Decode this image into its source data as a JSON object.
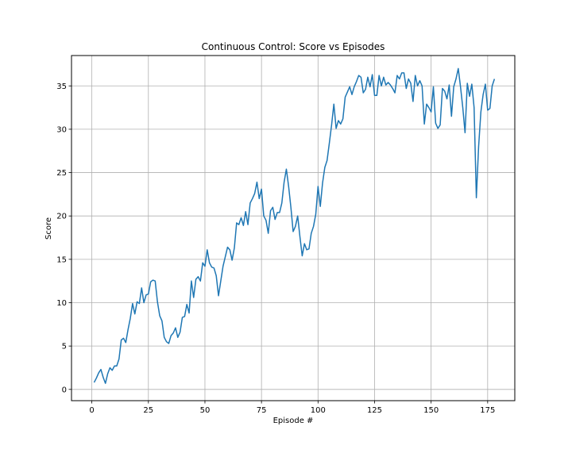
{
  "chart_data": {
    "type": "line",
    "title": "Continuous Control: Score vs Episodes",
    "xlabel": "Episode #",
    "ylabel": "Score",
    "xlim": [
      -9,
      187
    ],
    "ylim": [
      -1.3,
      38.5
    ],
    "xticks": [
      0,
      25,
      50,
      75,
      100,
      125,
      150,
      175
    ],
    "yticks": [
      0,
      5,
      10,
      15,
      20,
      25,
      30,
      35
    ],
    "grid": true,
    "line_color": "#1f77b4",
    "series": [
      {
        "x": [
          1,
          2,
          3,
          4,
          5,
          6,
          7,
          8,
          9,
          10,
          11,
          12,
          13,
          14,
          15,
          16,
          17,
          18,
          19,
          20,
          21,
          22,
          23,
          24,
          25,
          26,
          27,
          28,
          29,
          30,
          31,
          32,
          33,
          34,
          35,
          36,
          37,
          38,
          39,
          40,
          41,
          42,
          43,
          44,
          45,
          46,
          47,
          48,
          49,
          50,
          51,
          52,
          53,
          54,
          55,
          56,
          57,
          58,
          59,
          60,
          61,
          62,
          63,
          64,
          65,
          66,
          67,
          68,
          69,
          70,
          71,
          72,
          73,
          74,
          75,
          76,
          77,
          78,
          79,
          80,
          81,
          82,
          83,
          84,
          85,
          86,
          87,
          88,
          89,
          90,
          91,
          92,
          93,
          94,
          95,
          96,
          97,
          98,
          99,
          100,
          101,
          102,
          103,
          104,
          105,
          106,
          107,
          108,
          109,
          110,
          111,
          112,
          113,
          114,
          115,
          116,
          117,
          118,
          119,
          120,
          121,
          122,
          123,
          124,
          125,
          126,
          127,
          128,
          129,
          130,
          131,
          132,
          133,
          134,
          135,
          136,
          137,
          138,
          139,
          140,
          141,
          142,
          143,
          144,
          145,
          146,
          147,
          148,
          149,
          150,
          151,
          152,
          153,
          154,
          155,
          156,
          157,
          158,
          159,
          160,
          161,
          162,
          163,
          164,
          165,
          166,
          167,
          168,
          169,
          170,
          171,
          172,
          173,
          174,
          175,
          176,
          177,
          178
        ],
        "values": [
          0.8,
          1.3,
          1.9,
          2.3,
          1.4,
          0.7,
          1.8,
          2.5,
          2.2,
          2.7,
          2.7,
          3.5,
          5.7,
          5.9,
          5.4,
          6.9,
          8.2,
          9.9,
          8.7,
          10.1,
          9.9,
          11.7,
          10.0,
          10.9,
          11.0,
          12.4,
          12.6,
          12.5,
          10.1,
          8.5,
          7.9,
          6.0,
          5.5,
          5.3,
          6.2,
          6.5,
          7.1,
          6.0,
          6.6,
          8.3,
          8.4,
          9.8,
          8.8,
          12.5,
          10.6,
          12.7,
          13.0,
          12.5,
          14.6,
          14.2,
          16.1,
          14.6,
          14.1,
          14.0,
          13.1,
          10.8,
          12.5,
          14.2,
          15.3,
          16.4,
          16.1,
          14.9,
          16.3,
          19.2,
          19.0,
          19.8,
          18.9,
          20.5,
          19.0,
          21.5,
          22.0,
          22.6,
          23.9,
          22.0,
          23.1,
          20.0,
          19.5,
          18.0,
          20.6,
          21.0,
          19.6,
          20.4,
          20.4,
          21.5,
          23.9,
          25.4,
          23.4,
          21.0,
          18.2,
          18.8,
          20.0,
          17.6,
          15.4,
          16.8,
          16.1,
          16.2,
          18.0,
          18.8,
          20.2,
          23.4,
          21.1,
          23.8,
          25.6,
          26.4,
          28.4,
          30.5,
          32.9,
          30.1,
          31.0,
          30.6,
          31.2,
          33.7,
          34.3,
          34.9,
          34.0,
          34.9,
          35.5,
          36.2,
          36.0,
          34.2,
          34.6,
          36.0,
          34.9,
          36.3,
          33.9,
          33.9,
          36.2,
          35.0,
          36.0,
          35.1,
          35.4,
          35.1,
          34.7,
          34.2,
          36.2,
          35.8,
          36.5,
          36.5,
          34.7,
          35.8,
          35.3,
          33.2,
          36.2,
          35.0,
          35.6,
          35.0,
          30.6,
          32.9,
          32.5,
          32.0,
          34.9,
          30.7,
          30.1,
          30.5,
          34.7,
          34.4,
          33.5,
          35.1,
          31.5,
          34.9,
          35.8,
          37.0,
          34.9,
          32.5,
          29.6,
          35.3,
          33.8,
          35.2,
          32.5,
          22.1,
          28.0,
          32.0,
          34.0,
          35.2,
          32.2,
          32.4,
          35.0,
          35.8
        ]
      }
    ]
  }
}
